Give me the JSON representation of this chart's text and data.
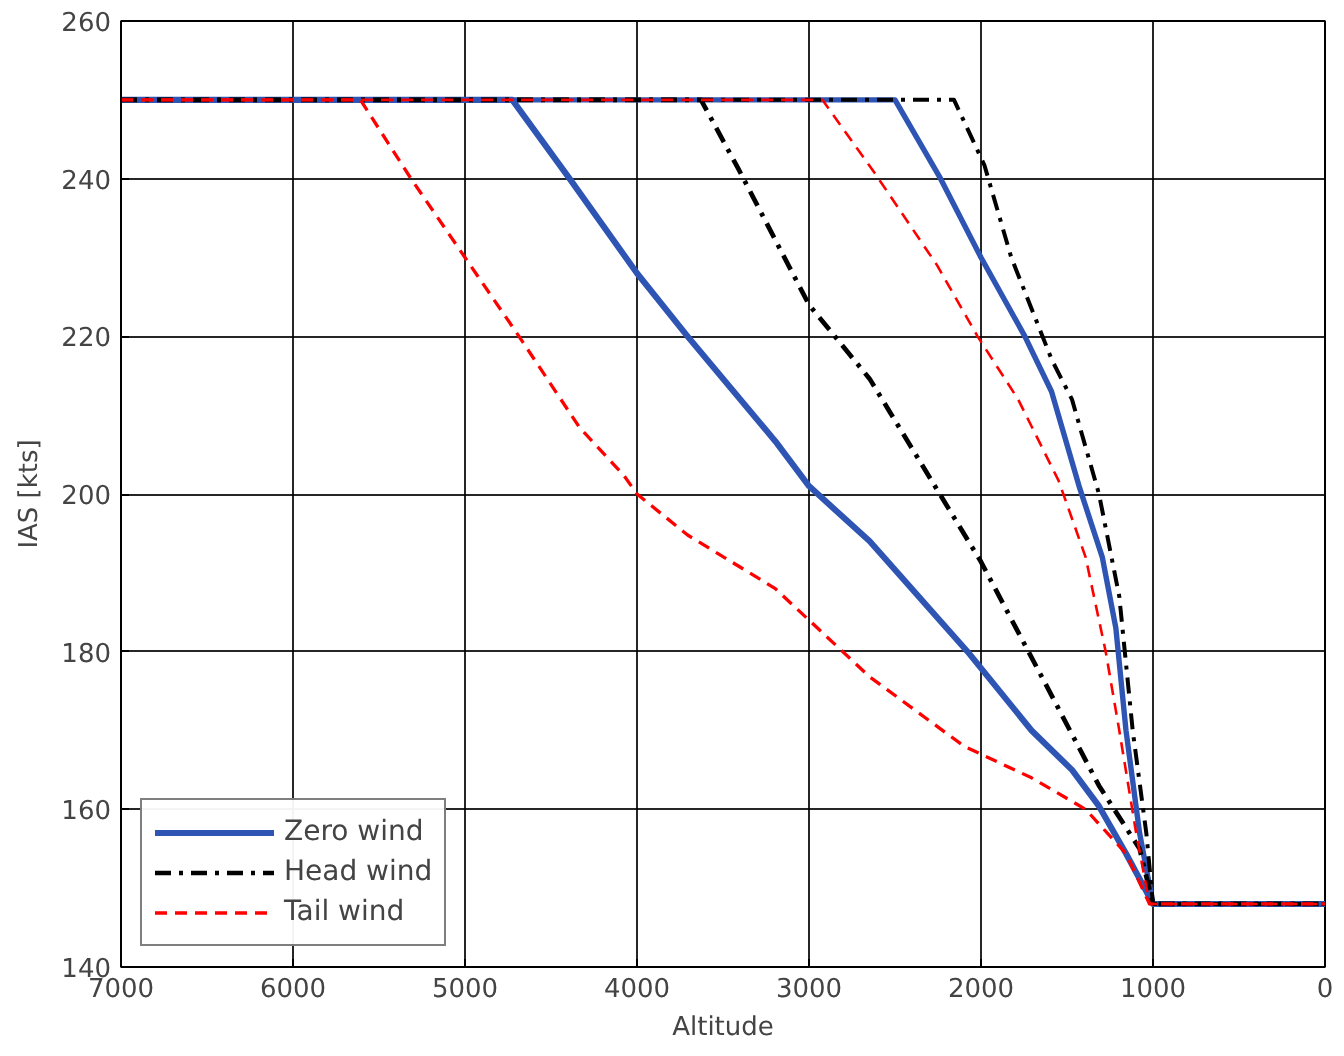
{
  "chart_data": {
    "type": "line",
    "xlabel": "Altitude",
    "ylabel": "IAS [kts]",
    "xlim": [
      7000,
      0
    ],
    "ylim": [
      140,
      260
    ],
    "xticks": [
      7000,
      6000,
      5000,
      4000,
      3000,
      2000,
      1000,
      0
    ],
    "yticks": [
      140,
      160,
      180,
      200,
      220,
      240,
      260
    ],
    "grid": true,
    "legend": "bottom left",
    "marker": "none",
    "series": [
      {
        "name": "Zero wind",
        "color": "#2f55b4",
        "line_style": "solid",
        "x": [
          7000,
          4725,
          4392,
          4000,
          3706,
          3196,
          3000,
          2647,
          2078,
          1706,
          1471,
          1314,
          1157,
          1000,
          0
        ],
        "values": [
          250,
          250,
          240,
          228,
          220,
          206.7,
          201,
          194,
          180,
          170,
          165,
          160.4,
          154.4,
          148,
          148
        ]
      },
      {
        "color": "#2f55b4",
        "line_style": "solid",
        "x": [
          7000,
          2500,
          2235,
          2000,
          1745,
          1590,
          1430,
          1295,
          1216,
          1157,
          1078,
          1000,
          0
        ],
        "values": [
          250,
          250,
          240,
          230,
          220,
          213,
          201,
          192,
          183,
          170,
          157,
          148,
          148
        ]
      },
      {
        "name": "Head wind",
        "color": "#000000",
        "line_style": "dashdot",
        "x": [
          7000,
          3628,
          3412,
          3000,
          2647,
          2000,
          1627,
          1314,
          1078,
          1000,
          0
        ],
        "values": [
          250,
          250,
          241.3,
          224,
          214.6,
          191.4,
          176,
          163,
          155,
          148,
          148
        ]
      },
      {
        "color": "#000000",
        "line_style": "dashdot",
        "x": [
          7000,
          2157,
          1980,
          1824,
          1588,
          1471,
          1314,
          1196,
          1118,
          1039,
          1000,
          0
        ],
        "values": [
          250,
          250,
          241.7,
          230,
          217,
          212,
          200,
          187,
          170,
          157,
          148,
          148
        ]
      },
      {
        "name": "Tail wind",
        "color": "#ff0000",
        "line_style": "dashed",
        "x": [
          7000,
          5608,
          5314,
          5000,
          4686,
          4333,
          4078,
          4000,
          3706,
          3196,
          3000,
          2647,
          2098,
          1706,
          1392,
          1157,
          1020,
          0
        ],
        "values": [
          250,
          250,
          240,
          230,
          220,
          208.4,
          202.4,
          200,
          194.8,
          188,
          184,
          176.8,
          168,
          164,
          160,
          154.4,
          148,
          148
        ]
      },
      {
        "color": "#ff0000",
        "line_style": "dashed",
        "x": [
          7000,
          2922,
          2608,
          2255,
          2020,
          1784,
          1549,
          1392,
          1275,
          1196,
          1098,
          1020,
          0
        ],
        "values": [
          250,
          250,
          240.4,
          229,
          220,
          212,
          201.7,
          192,
          180,
          170,
          157,
          148,
          148
        ]
      }
    ]
  }
}
